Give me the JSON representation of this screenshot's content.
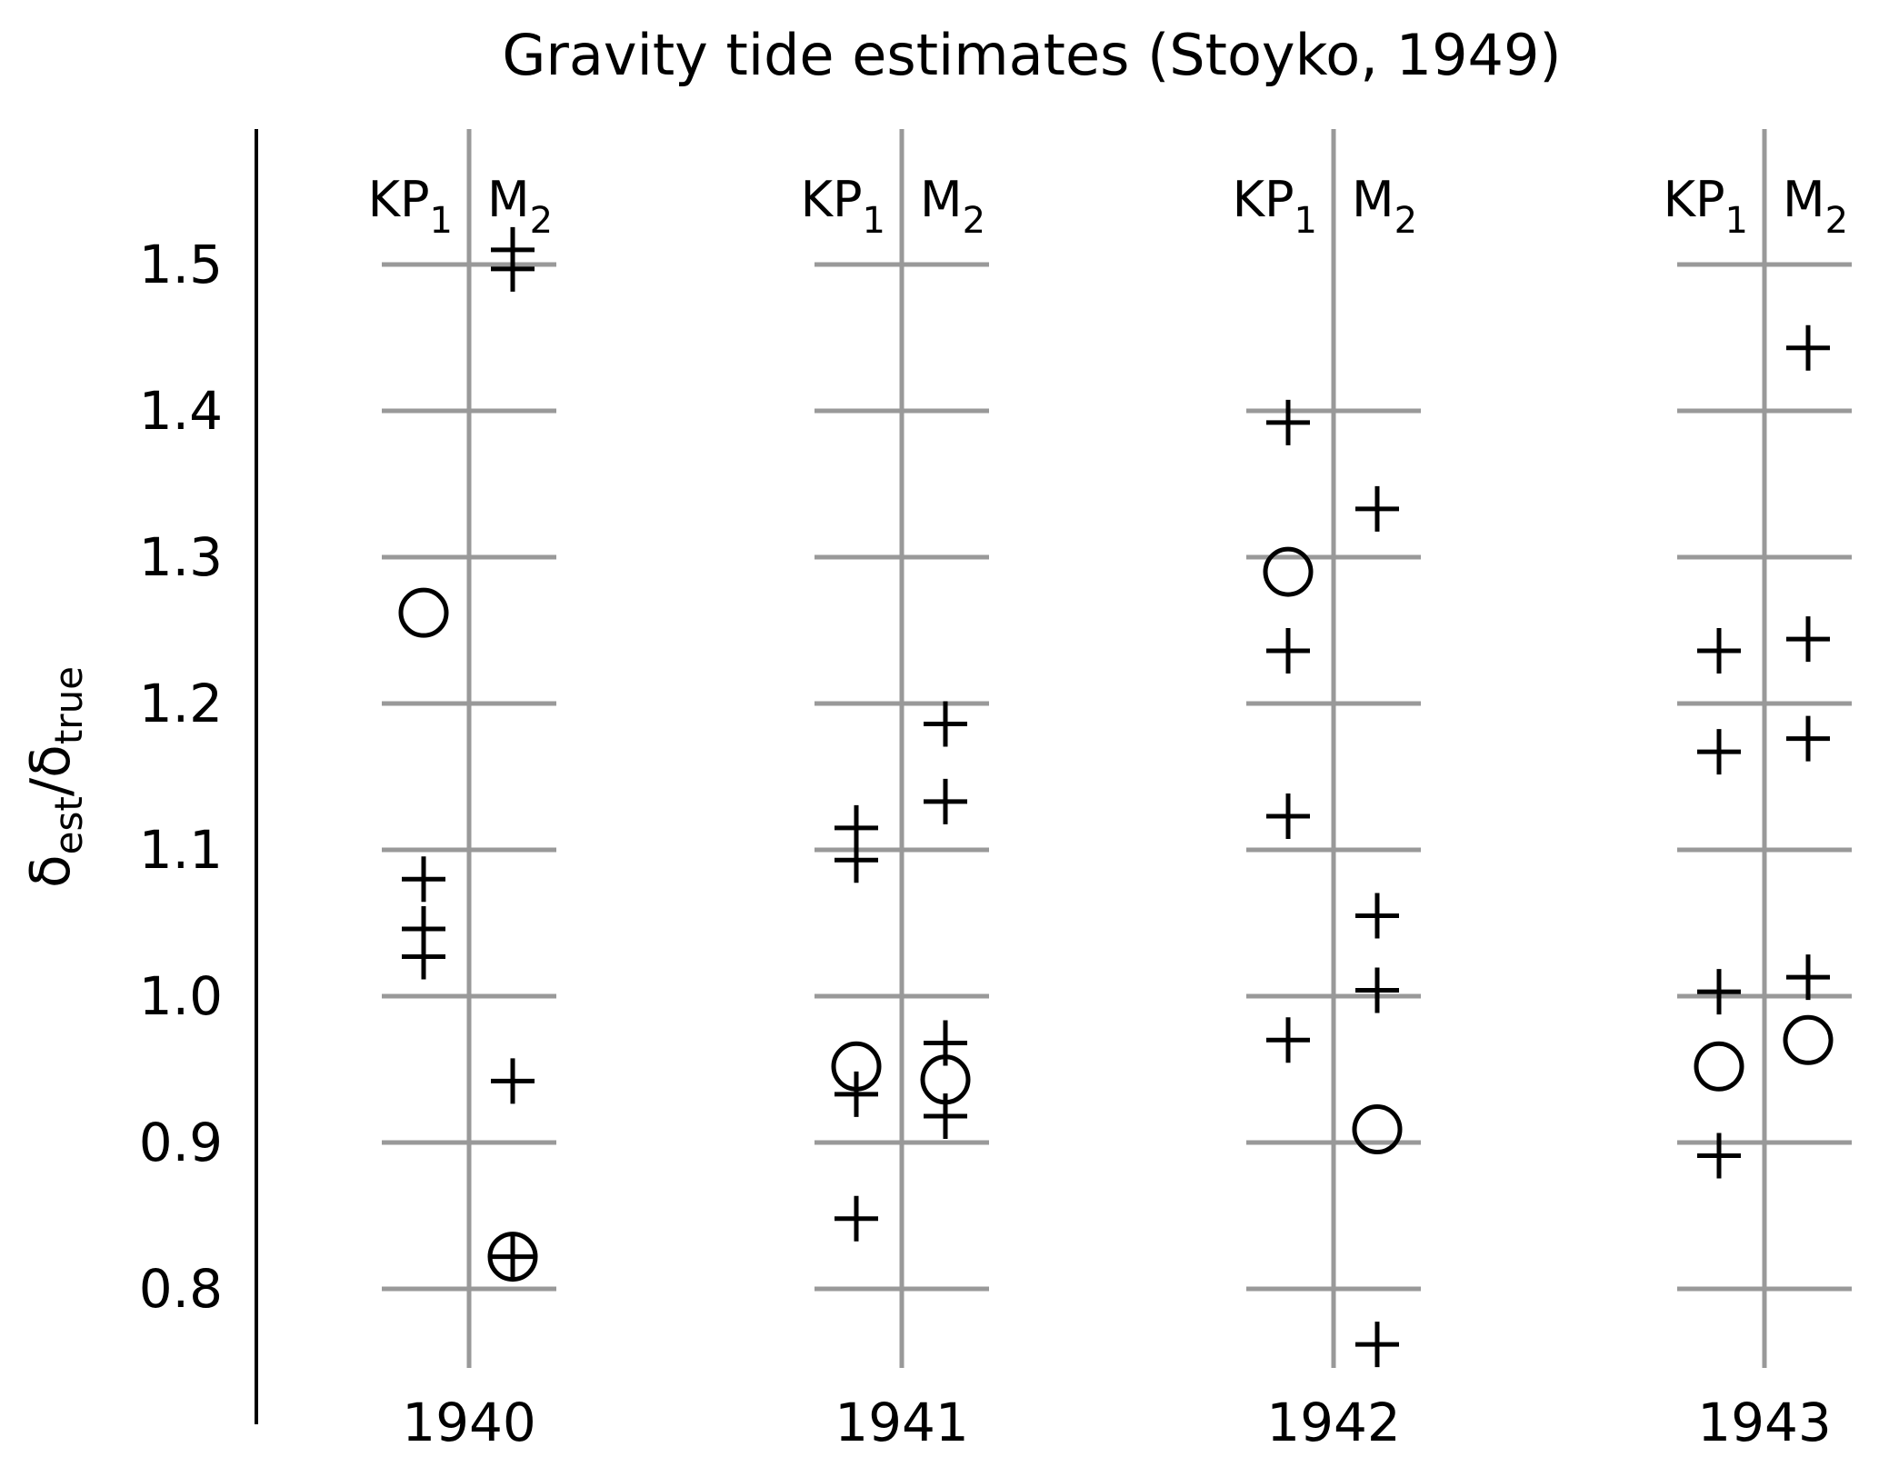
{
  "colors": {
    "grid": "#999999",
    "marker": "#000000",
    "axis": "#000000"
  },
  "chart_data": {
    "type": "scatter",
    "title": "Gravity tide estimates (Stoyko, 1949)",
    "ylabel": {
      "base": "δ",
      "sub1": "est",
      "sep": "/",
      "base2": "δ",
      "sub2": "true"
    },
    "ylim": [
      0.73,
      1.57
    ],
    "yticks": [
      "0.8",
      "0.9",
      "1.0",
      "1.1",
      "1.2",
      "1.3",
      "1.4",
      "1.5"
    ],
    "columns": [
      {
        "label1": "KP",
        "label1_sub": "1",
        "label2": "M",
        "label2_sub": "2"
      },
      {
        "label1": "KP",
        "label1_sub": "1",
        "label2": "M",
        "label2_sub": "2"
      },
      {
        "label1": "KP",
        "label1_sub": "1",
        "label2": "M",
        "label2_sub": "2"
      },
      {
        "label1": "KP",
        "label1_sub": "1",
        "label2": "M",
        "label2_sub": "2"
      }
    ],
    "groups": [
      {
        "year": "1940",
        "KP1": [
          {
            "value": 1.262,
            "marker": "circle"
          },
          {
            "value": 1.08,
            "marker": "plus"
          },
          {
            "value": 1.046,
            "marker": "plus"
          },
          {
            "value": 1.027,
            "marker": "plus"
          }
        ],
        "M2": [
          {
            "value": 1.51,
            "marker": "plus"
          },
          {
            "value": 1.497,
            "marker": "plus"
          },
          {
            "value": 0.942,
            "marker": "plus"
          },
          {
            "value": 0.822,
            "marker": "circle-plus"
          }
        ]
      },
      {
        "year": "1941",
        "KP1": [
          {
            "value": 1.115,
            "marker": "plus"
          },
          {
            "value": 1.093,
            "marker": "plus"
          },
          {
            "value": 0.952,
            "marker": "circle"
          },
          {
            "value": 0.933,
            "marker": "plus"
          },
          {
            "value": 0.848,
            "marker": "plus"
          }
        ],
        "M2": [
          {
            "value": 1.186,
            "marker": "plus"
          },
          {
            "value": 1.133,
            "marker": "plus"
          },
          {
            "value": 0.968,
            "marker": "plus"
          },
          {
            "value": 0.943,
            "marker": "circle"
          },
          {
            "value": 0.918,
            "marker": "plus"
          }
        ]
      },
      {
        "year": "1942",
        "KP1": [
          {
            "value": 1.392,
            "marker": "plus"
          },
          {
            "value": 1.29,
            "marker": "circle"
          },
          {
            "value": 1.236,
            "marker": "plus"
          },
          {
            "value": 1.123,
            "marker": "plus"
          },
          {
            "value": 0.97,
            "marker": "plus"
          }
        ],
        "M2": [
          {
            "value": 1.333,
            "marker": "plus"
          },
          {
            "value": 1.055,
            "marker": "plus"
          },
          {
            "value": 1.004,
            "marker": "plus"
          },
          {
            "value": 0.909,
            "marker": "circle"
          },
          {
            "value": 0.762,
            "marker": "plus"
          }
        ]
      },
      {
        "year": "1943",
        "KP1": [
          {
            "value": 1.236,
            "marker": "plus"
          },
          {
            "value": 1.167,
            "marker": "plus"
          },
          {
            "value": 1.003,
            "marker": "plus"
          },
          {
            "value": 0.952,
            "marker": "circle"
          },
          {
            "value": 0.891,
            "marker": "plus"
          }
        ],
        "M2": [
          {
            "value": 1.443,
            "marker": "plus"
          },
          {
            "value": 1.244,
            "marker": "plus"
          },
          {
            "value": 1.176,
            "marker": "plus"
          },
          {
            "value": 1.013,
            "marker": "plus"
          },
          {
            "value": 0.97,
            "marker": "circle"
          }
        ]
      }
    ]
  }
}
